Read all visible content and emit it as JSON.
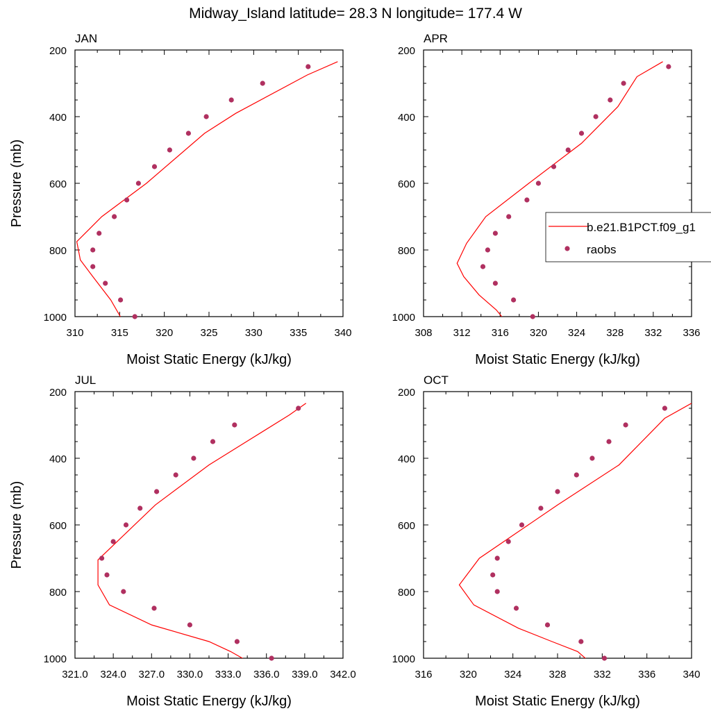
{
  "title": "Midway_Island  latitude= 28.3 N longitude= 177.4 W",
  "colors": {
    "model": "#ff0000",
    "raobs": "#b03060",
    "axis": "#000000"
  },
  "legend": {
    "placement": "right-of-APR-panel",
    "entries": [
      "b.e21.B1PCT.f09_g1",
      "raobs"
    ]
  },
  "chart_data": [
    {
      "type": "line+scatter",
      "panel_label": "JAN",
      "xlabel": "Moist Static Energy (kJ/kg)",
      "ylabel": "Pressure (mb)",
      "xlim": [
        310,
        340
      ],
      "xticks": [
        310,
        315,
        320,
        325,
        330,
        335,
        340
      ],
      "xtick_labels": [
        "310",
        "315",
        "320",
        "325",
        "330",
        "335",
        "340"
      ],
      "ylim": [
        200,
        1000
      ],
      "yticks": [
        200,
        400,
        600,
        800,
        1000
      ],
      "y_inverted": true,
      "series": [
        {
          "name": "b.e21.B1PCT.f09_g1",
          "kind": "line",
          "x": [
            315.4,
            314.0,
            312.0,
            310.6,
            310.2,
            313.0,
            318.0,
            324.5,
            328.0,
            336.0,
            339.4
          ],
          "y": [
            1015,
            950,
            880,
            830,
            775,
            700,
            600,
            450,
            390,
            275,
            235
          ]
        },
        {
          "name": "raobs",
          "kind": "scatter",
          "x": [
            316.7,
            315.1,
            313.4,
            312.0,
            312.0,
            312.7,
            314.4,
            315.8,
            317.1,
            318.9,
            320.6,
            322.7,
            324.7,
            327.5,
            331.0,
            336.1
          ],
          "y": [
            1000,
            950,
            900,
            850,
            800,
            750,
            700,
            650,
            600,
            550,
            500,
            450,
            400,
            350,
            300,
            250
          ]
        }
      ]
    },
    {
      "type": "line+scatter",
      "panel_label": "APR",
      "xlabel": "Moist Static Energy (kJ/kg)",
      "ylabel": "",
      "xlim": [
        308,
        336
      ],
      "xticks": [
        308,
        312,
        316,
        320,
        324,
        328,
        332,
        336
      ],
      "xtick_labels": [
        "308",
        "312",
        "316",
        "320",
        "324",
        "328",
        "332",
        "336"
      ],
      "ylim": [
        200,
        1000
      ],
      "yticks": [
        200,
        400,
        600,
        800,
        1000
      ],
      "y_inverted": true,
      "series": [
        {
          "name": "b.e21.B1PCT.f09_g1",
          "kind": "line",
          "x": [
            316.6,
            315.6,
            313.8,
            312.2,
            311.5,
            312.5,
            314.5,
            319.0,
            324.5,
            328.3,
            330.3,
            333.0
          ],
          "y": [
            1015,
            980,
            935,
            880,
            840,
            780,
            700,
            600,
            480,
            370,
            280,
            235
          ]
        },
        {
          "name": "raobs",
          "kind": "scatter",
          "x": [
            319.4,
            317.4,
            315.5,
            314.2,
            314.7,
            315.5,
            316.9,
            318.8,
            320.0,
            321.6,
            323.1,
            324.5,
            326.0,
            327.5,
            328.9,
            333.6
          ],
          "y": [
            1000,
            950,
            900,
            850,
            800,
            750,
            700,
            650,
            600,
            550,
            500,
            450,
            400,
            350,
            300,
            250
          ]
        }
      ]
    },
    {
      "type": "line+scatter",
      "panel_label": "JUL",
      "xlabel": "Moist Static Energy (kJ/kg)",
      "ylabel": "Pressure (mb)",
      "xlim": [
        321,
        342
      ],
      "xticks": [
        321,
        324,
        327,
        330,
        333,
        336,
        339,
        342
      ],
      "xtick_labels": [
        "321.0",
        "324.0",
        "327.0",
        "330.0",
        "333.0",
        "336.0",
        "339.0",
        "342.0"
      ],
      "ylim": [
        200,
        1000
      ],
      "yticks": [
        200,
        400,
        600,
        800,
        1000
      ],
      "y_inverted": true,
      "series": [
        {
          "name": "b.e21.B1PCT.f09_g1",
          "kind": "line",
          "x": [
            334.8,
            333.2,
            331.5,
            327.0,
            323.7,
            322.8,
            322.8,
            327.3,
            331.5,
            337.8,
            339.1
          ],
          "y": [
            1015,
            980,
            950,
            900,
            840,
            780,
            705,
            540,
            420,
            270,
            235
          ]
        },
        {
          "name": "raobs",
          "kind": "scatter",
          "x": [
            336.4,
            333.7,
            330.0,
            327.2,
            324.8,
            323.5,
            323.1,
            324.0,
            325.0,
            326.1,
            327.4,
            328.9,
            330.3,
            331.8,
            333.5,
            338.5
          ],
          "y": [
            1000,
            950,
            900,
            850,
            800,
            750,
            700,
            650,
            600,
            550,
            500,
            450,
            400,
            350,
            300,
            250
          ]
        }
      ]
    },
    {
      "type": "line+scatter",
      "panel_label": "OCT",
      "xlabel": "Moist Static Energy (kJ/kg)",
      "ylabel": "",
      "xlim": [
        316,
        340
      ],
      "xticks": [
        316,
        320,
        324,
        328,
        332,
        336,
        340
      ],
      "xtick_labels": [
        "316",
        "320",
        "324",
        "328",
        "332",
        "336",
        "340"
      ],
      "ylim": [
        200,
        1000
      ],
      "yticks": [
        200,
        400,
        600,
        800,
        1000
      ],
      "y_inverted": true,
      "series": [
        {
          "name": "b.e21.B1PCT.f09_g1",
          "kind": "line",
          "x": [
            331.0,
            329.8,
            327.5,
            324.5,
            320.5,
            319.2,
            321.0,
            328.0,
            333.5,
            337.6,
            340.0
          ],
          "y": [
            1015,
            980,
            950,
            910,
            840,
            780,
            700,
            540,
            420,
            280,
            235
          ]
        },
        {
          "name": "raobs",
          "kind": "scatter",
          "x": [
            332.2,
            330.1,
            327.1,
            324.3,
            322.6,
            322.2,
            322.6,
            323.6,
            324.8,
            326.5,
            328.0,
            329.7,
            331.1,
            332.6,
            334.1,
            337.6
          ],
          "y": [
            1000,
            950,
            900,
            850,
            800,
            750,
            700,
            650,
            600,
            550,
            500,
            450,
            400,
            350,
            300,
            250
          ]
        }
      ]
    }
  ]
}
